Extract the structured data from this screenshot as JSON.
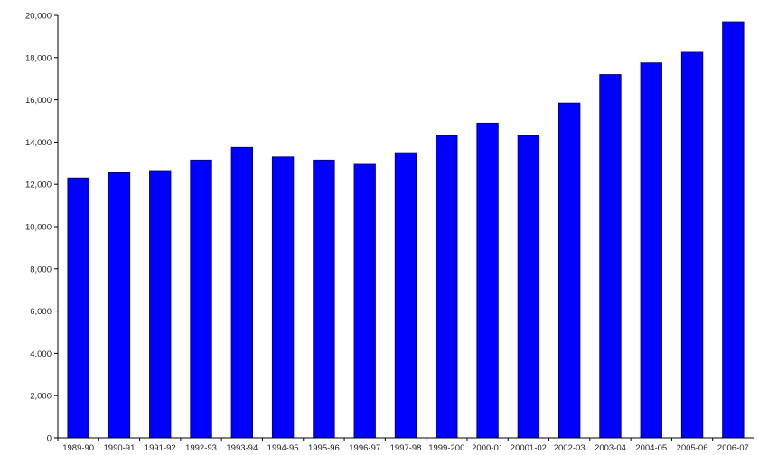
{
  "chart_data": {
    "type": "bar",
    "title": "",
    "xlabel": "",
    "ylabel": "",
    "categories": [
      "1989-90",
      "1990-91",
      "1991-92",
      "1992-93",
      "1993-94",
      "1994-95",
      "1995-96",
      "1996-97",
      "1997-98",
      "1999-200",
      "2000-01",
      "20001-02",
      "2002-03",
      "2003-04",
      "2004-05",
      "2005-06",
      "2006-07"
    ],
    "values": [
      12300,
      12550,
      12650,
      13150,
      13750,
      13300,
      13150,
      12950,
      13500,
      14300,
      14900,
      14300,
      15850,
      17200,
      17750,
      18250,
      19700
    ],
    "ylim": [
      0,
      20000
    ],
    "yticks": [
      0,
      2000,
      4000,
      6000,
      8000,
      10000,
      12000,
      14000,
      16000,
      18000,
      20000
    ],
    "ytick_labels": [
      "0",
      "2,000",
      "4,000",
      "6,000",
      "8,000",
      "10,000",
      "12,000",
      "14,000",
      "16,000",
      "18,000",
      "20,000"
    ],
    "bar_color": "#0000ff",
    "bar_edge_color": "#000066",
    "grid": false,
    "legend": "none"
  }
}
